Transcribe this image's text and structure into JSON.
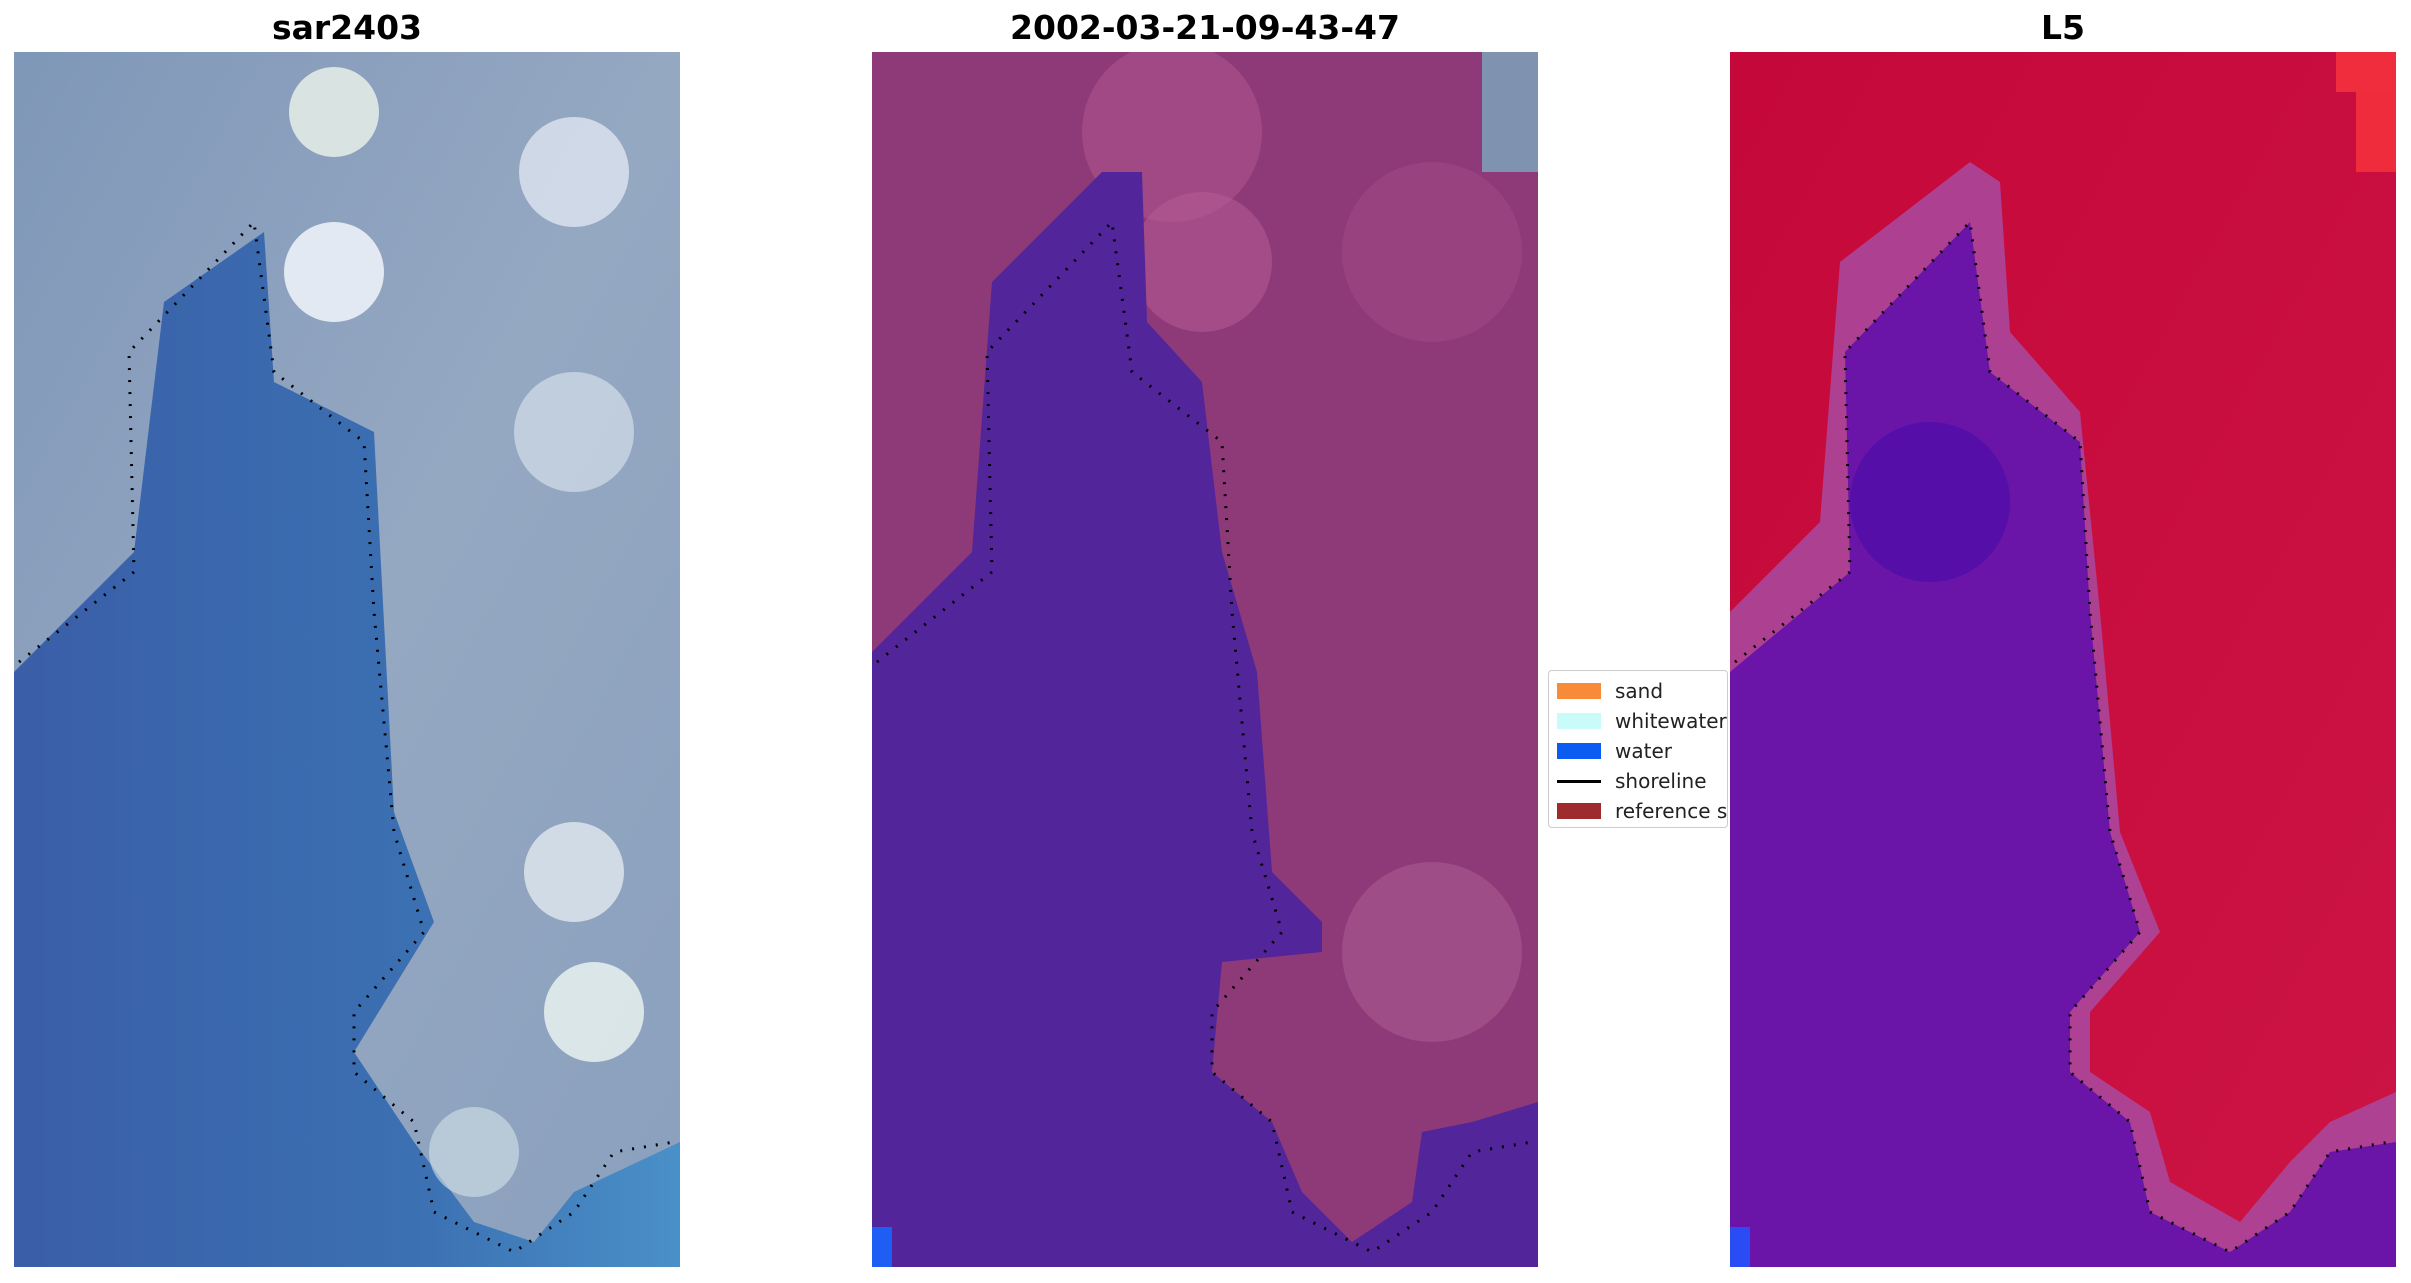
{
  "panels": [
    {
      "title": "sar2403"
    },
    {
      "title": "2002-03-21-09-43-47"
    },
    {
      "title": "L5"
    }
  ],
  "legend": {
    "items": [
      {
        "label": "sand",
        "color": "#f98a3a",
        "kind": "patch"
      },
      {
        "label": "whitewater",
        "color": "#c8fbfa",
        "kind": "patch"
      },
      {
        "label": "water",
        "color": "#0a5df0",
        "kind": "patch"
      },
      {
        "label": "shoreline",
        "color": "#000000",
        "kind": "line"
      },
      {
        "label": "reference shoreline",
        "color": "#9e2b2e",
        "kind": "patch"
      }
    ]
  },
  "colors": {
    "rgb_water": "#3a68ad",
    "rgb_land": "#8fa3bf",
    "class_water": "#52259a",
    "class_land": "#8e3a78",
    "index_water": "#6a14a8",
    "index_land": "#c8103a",
    "corner_blue": "#1f5ef5",
    "shoreline_dots": "#000000"
  }
}
